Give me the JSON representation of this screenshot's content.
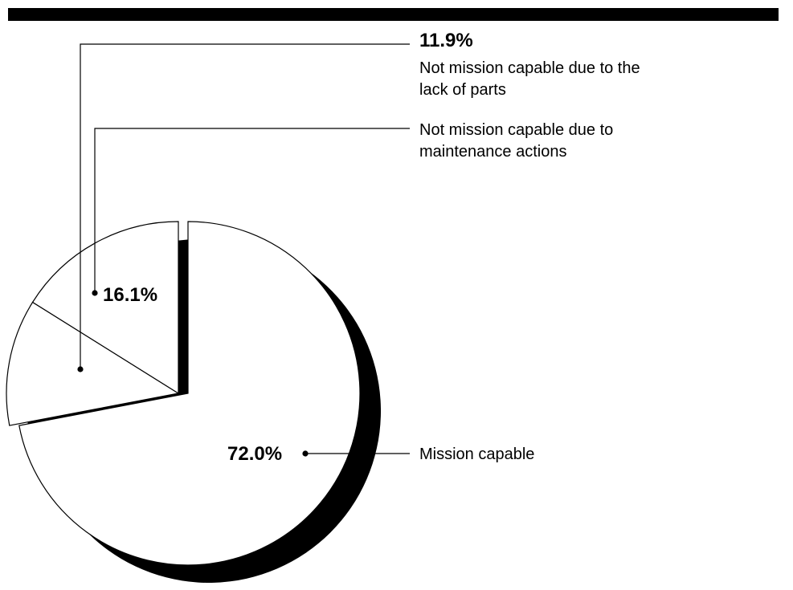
{
  "chart_data": {
    "type": "pie",
    "title": "",
    "slices": [
      {
        "label_lines": [
          "Mission capable"
        ],
        "value": 72.0,
        "value_text": "72.0%"
      },
      {
        "label_lines": [
          "Not mission capable due to the",
          "lack of parts"
        ],
        "value": 11.9,
        "value_text": "11.9%"
      },
      {
        "label_lines": [
          "Not mission capable due to",
          "maintenance actions"
        ],
        "value": 16.1,
        "value_text": "16.1%"
      }
    ],
    "exploded": [
      "Mission capable"
    ],
    "shadow": true,
    "colors": {
      "fill": "#ffffff",
      "stroke": "#000000",
      "shadow": "#000000",
      "header_bar": "#000000"
    }
  }
}
